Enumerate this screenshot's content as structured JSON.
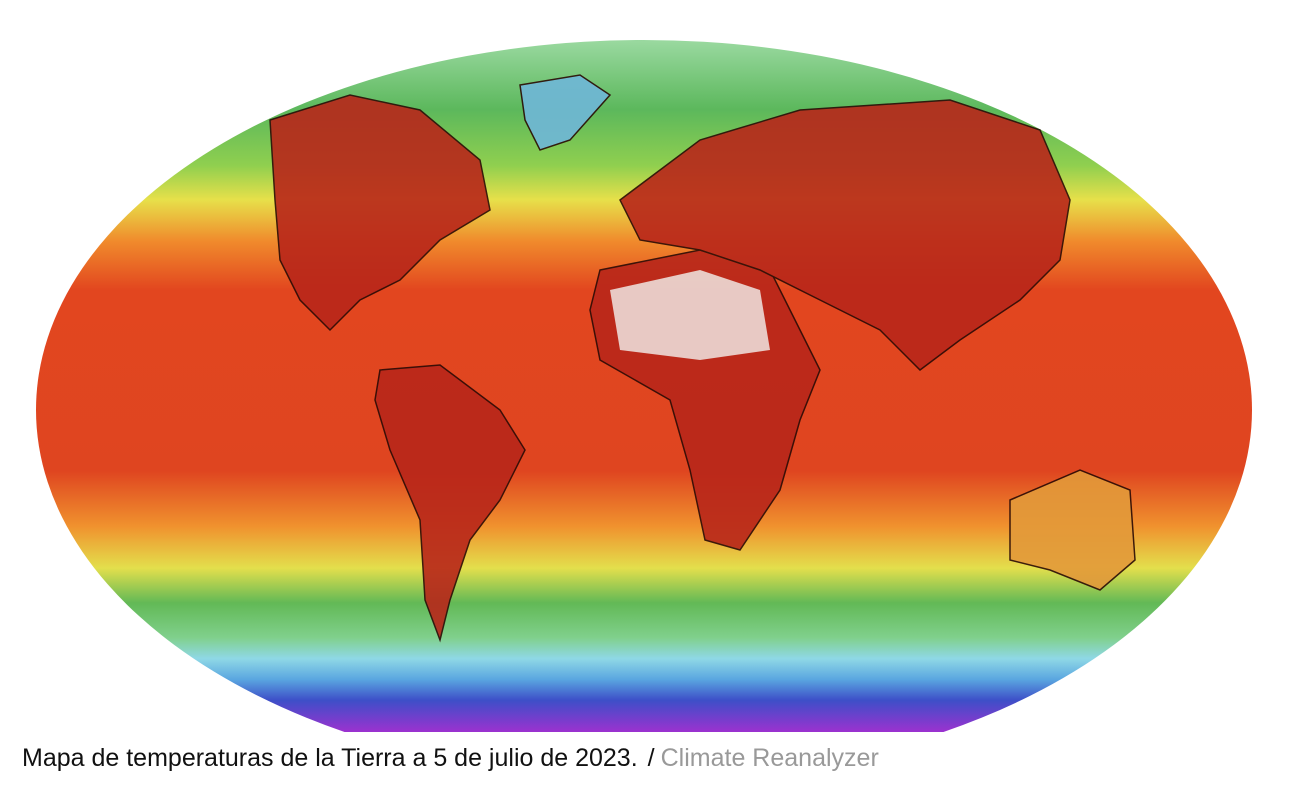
{
  "caption": {
    "text": "Mapa de temperaturas de la Tierra a 5 de julio de 2023.",
    "separator": "/",
    "credit": "Climate Reanalyzer"
  }
}
